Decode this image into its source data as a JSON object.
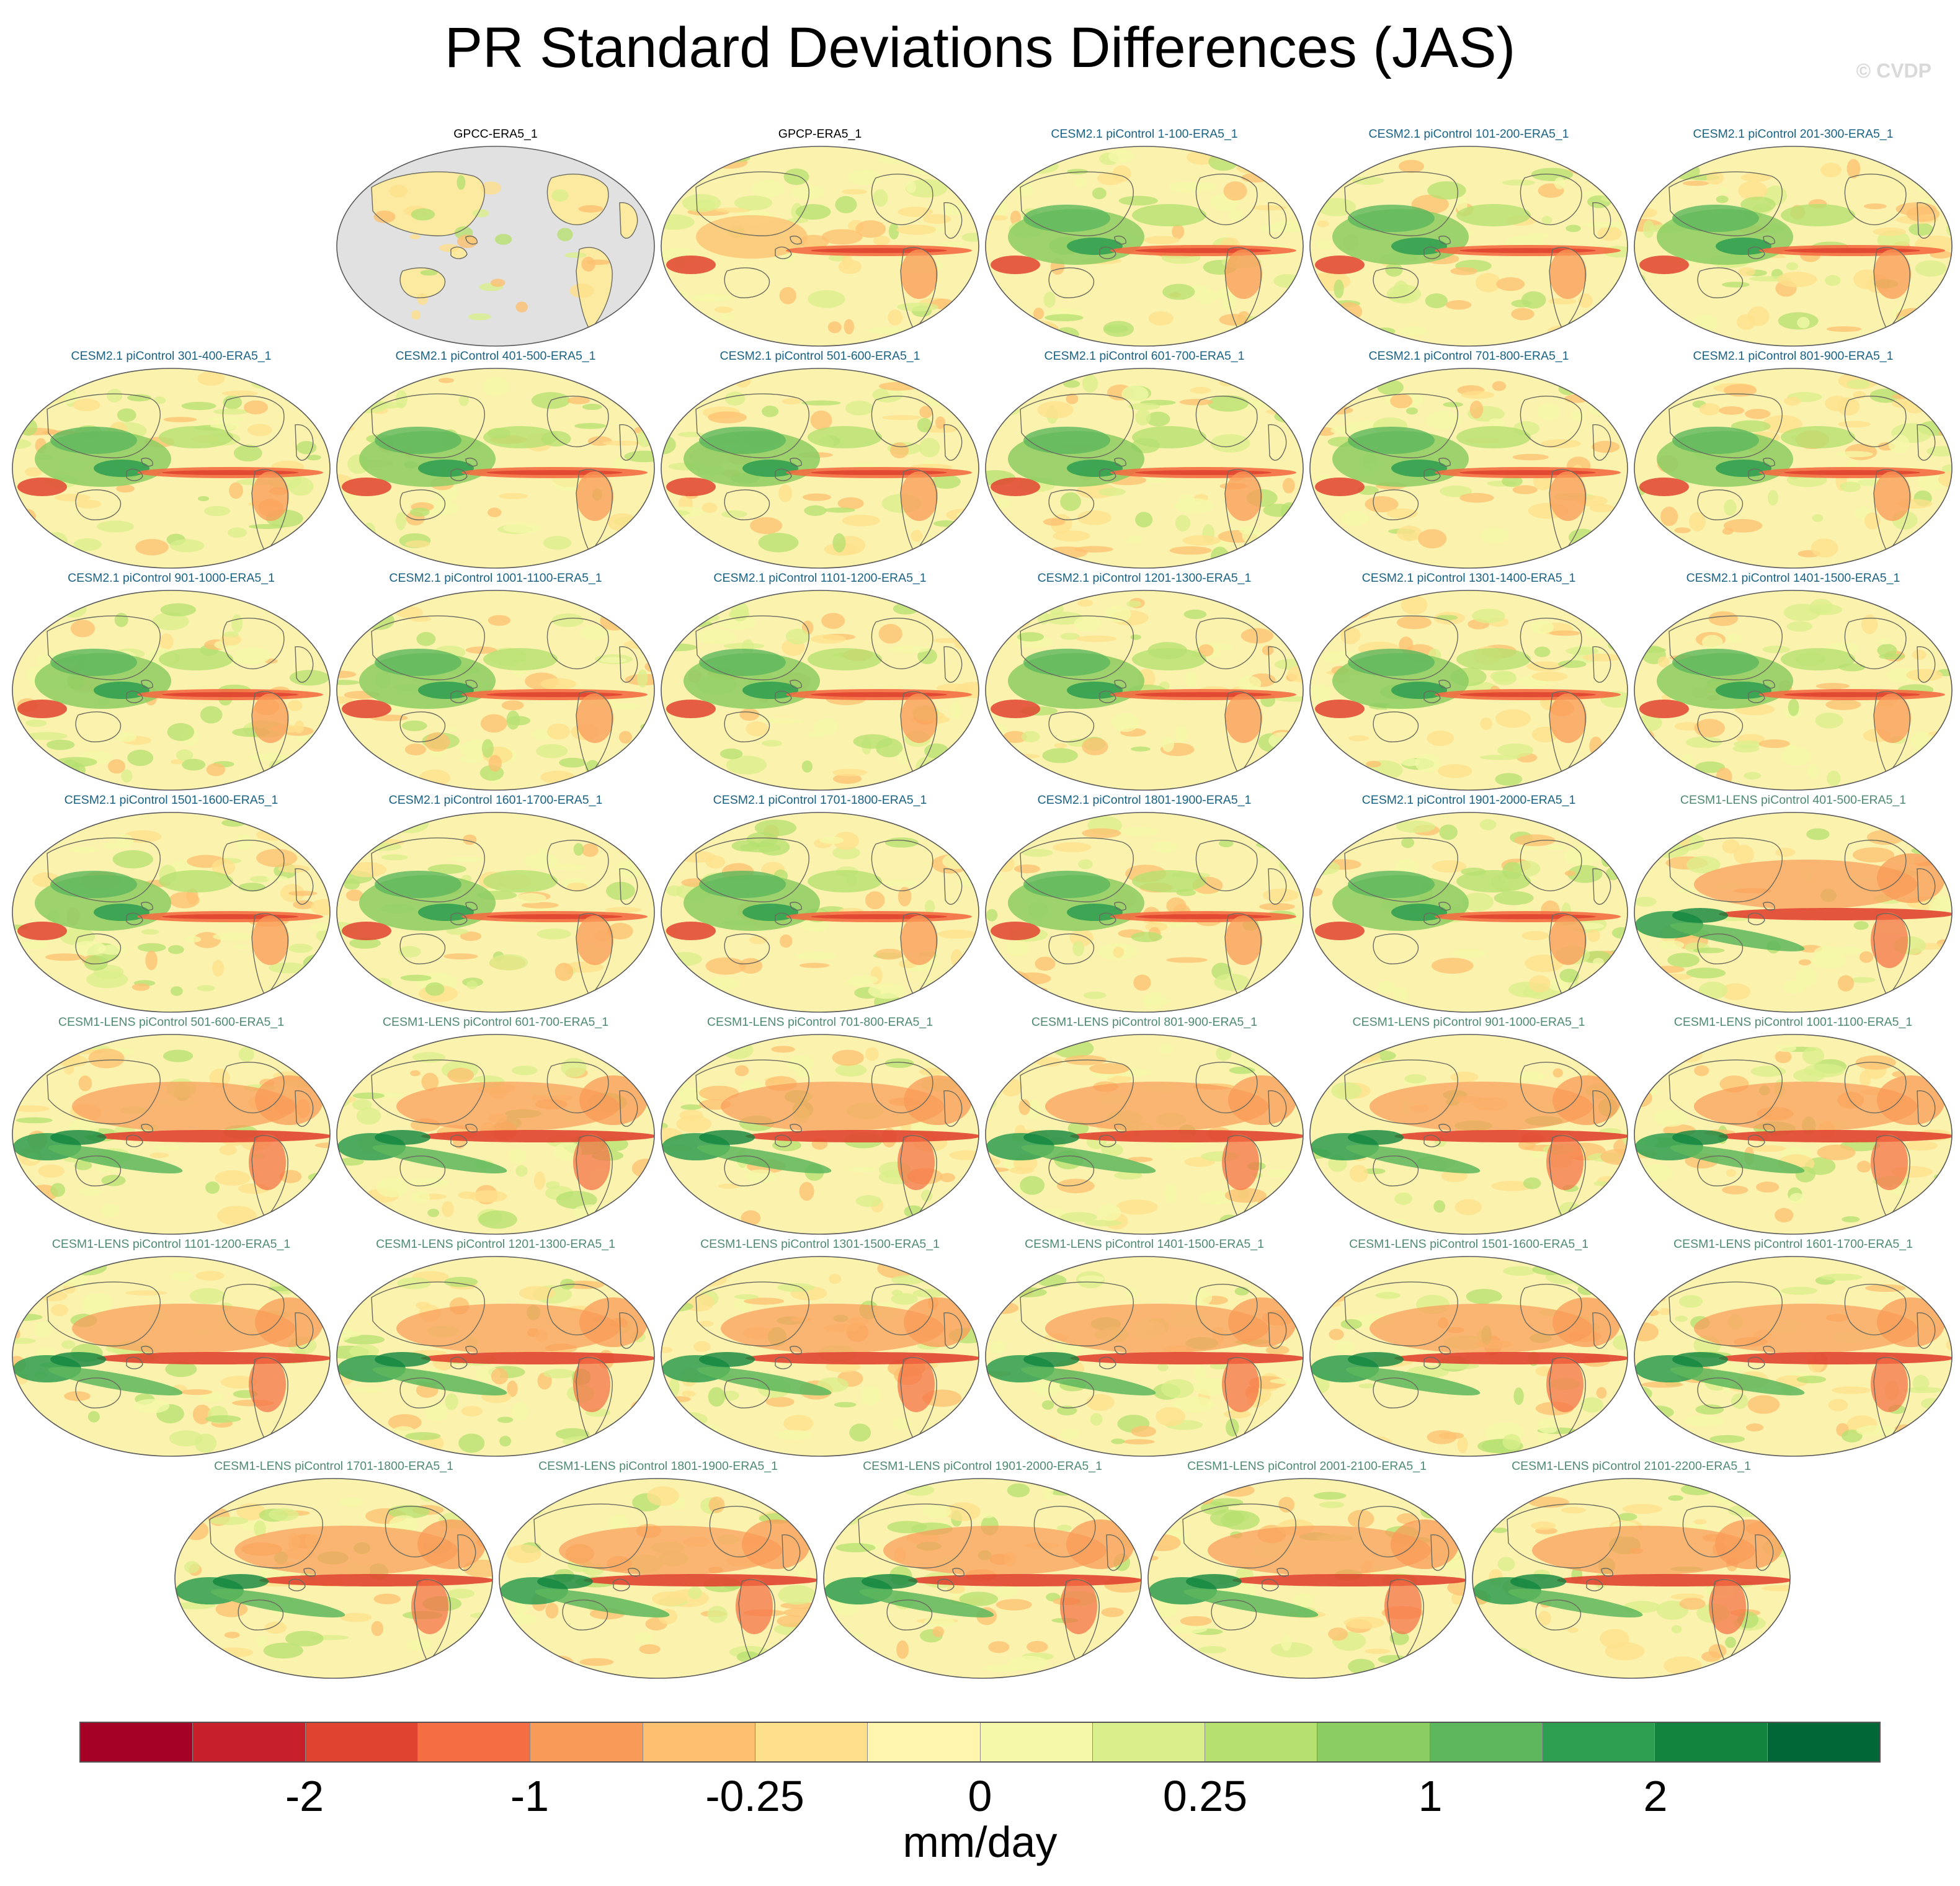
{
  "title": "PR Standard Deviations Differences (JAS)",
  "copyright": "© CVDP",
  "units": "mm/day",
  "colorbar": {
    "colors": [
      "#a50026",
      "#c8202a",
      "#e04430",
      "#f46d43",
      "#f99b58",
      "#fdc070",
      "#fee08b",
      "#fff5ad",
      "#f4f8a8",
      "#d9ef8b",
      "#b6e070",
      "#8ccd62",
      "#5db75c",
      "#2e9e50",
      "#12843e",
      "#006837"
    ],
    "tick_labels": [
      {
        "label": "-2",
        "boundary": 2
      },
      {
        "label": "-1",
        "boundary": 4
      },
      {
        "label": "-0.25",
        "boundary": 6
      },
      {
        "label": "0",
        "boundary": 8
      },
      {
        "label": "0.25",
        "boundary": 10
      },
      {
        "label": "1",
        "boundary": 12
      },
      {
        "label": "2",
        "boundary": 14
      }
    ]
  },
  "panel_style": {
    "obs": "#000000",
    "cesm2": "#1a6284",
    "lens": "#4f8a73"
  },
  "panels": [
    {
      "title": "GPCC-ERA5_1",
      "group": "obs",
      "pattern": "gpcc"
    },
    {
      "title": "GPCP-ERA5_1",
      "group": "obs",
      "pattern": "gpcp"
    },
    {
      "title": "CESM2.1 piControl 1-100-ERA5_1",
      "group": "cesm2",
      "pattern": "cesm2"
    },
    {
      "title": "CESM2.1 piControl 101-200-ERA5_1",
      "group": "cesm2",
      "pattern": "cesm2"
    },
    {
      "title": "CESM2.1 piControl 201-300-ERA5_1",
      "group": "cesm2",
      "pattern": "cesm2"
    },
    {
      "title": "CESM2.1 piControl 301-400-ERA5_1",
      "group": "cesm2",
      "pattern": "cesm2"
    },
    {
      "title": "CESM2.1 piControl 401-500-ERA5_1",
      "group": "cesm2",
      "pattern": "cesm2"
    },
    {
      "title": "CESM2.1 piControl 501-600-ERA5_1",
      "group": "cesm2",
      "pattern": "cesm2"
    },
    {
      "title": "CESM2.1 piControl 601-700-ERA5_1",
      "group": "cesm2",
      "pattern": "cesm2"
    },
    {
      "title": "CESM2.1 piControl 701-800-ERA5_1",
      "group": "cesm2",
      "pattern": "cesm2"
    },
    {
      "title": "CESM2.1 piControl 801-900-ERA5_1",
      "group": "cesm2",
      "pattern": "cesm2"
    },
    {
      "title": "CESM2.1 piControl 901-1000-ERA5_1",
      "group": "cesm2",
      "pattern": "cesm2"
    },
    {
      "title": "CESM2.1 piControl 1001-1100-ERA5_1",
      "group": "cesm2",
      "pattern": "cesm2"
    },
    {
      "title": "CESM2.1 piControl 1101-1200-ERA5_1",
      "group": "cesm2",
      "pattern": "cesm2"
    },
    {
      "title": "CESM2.1 piControl 1201-1300-ERA5_1",
      "group": "cesm2",
      "pattern": "cesm2"
    },
    {
      "title": "CESM2.1 piControl 1301-1400-ERA5_1",
      "group": "cesm2",
      "pattern": "cesm2"
    },
    {
      "title": "CESM2.1 piControl 1401-1500-ERA5_1",
      "group": "cesm2",
      "pattern": "cesm2"
    },
    {
      "title": "CESM2.1 piControl 1501-1600-ERA5_1",
      "group": "cesm2",
      "pattern": "cesm2"
    },
    {
      "title": "CESM2.1 piControl 1601-1700-ERA5_1",
      "group": "cesm2",
      "pattern": "cesm2"
    },
    {
      "title": "CESM2.1 piControl 1701-1800-ERA5_1",
      "group": "cesm2",
      "pattern": "cesm2"
    },
    {
      "title": "CESM2.1 piControl 1801-1900-ERA5_1",
      "group": "cesm2",
      "pattern": "cesm2"
    },
    {
      "title": "CESM2.1 piControl 1901-2000-ERA5_1",
      "group": "cesm2",
      "pattern": "cesm2"
    },
    {
      "title": "CESM1-LENS piControl 401-500-ERA5_1",
      "group": "lens",
      "pattern": "lens"
    },
    {
      "title": "CESM1-LENS piControl 501-600-ERA5_1",
      "group": "lens",
      "pattern": "lens"
    },
    {
      "title": "CESM1-LENS piControl 601-700-ERA5_1",
      "group": "lens",
      "pattern": "lens"
    },
    {
      "title": "CESM1-LENS piControl 701-800-ERA5_1",
      "group": "lens",
      "pattern": "lens"
    },
    {
      "title": "CESM1-LENS piControl 801-900-ERA5_1",
      "group": "lens",
      "pattern": "lens"
    },
    {
      "title": "CESM1-LENS piControl 901-1000-ERA5_1",
      "group": "lens",
      "pattern": "lens"
    },
    {
      "title": "CESM1-LENS piControl 1001-1100-ERA5_1",
      "group": "lens",
      "pattern": "lens"
    },
    {
      "title": "CESM1-LENS piControl 1101-1200-ERA5_1",
      "group": "lens",
      "pattern": "lens"
    },
    {
      "title": "CESM1-LENS piControl 1201-1300-ERA5_1",
      "group": "lens",
      "pattern": "lens"
    },
    {
      "title": "CESM1-LENS piControl 1301-1500-ERA5_1",
      "group": "lens",
      "pattern": "lens"
    },
    {
      "title": "CESM1-LENS piControl 1401-1500-ERA5_1",
      "group": "lens",
      "pattern": "lens"
    },
    {
      "title": "CESM1-LENS piControl 1501-1600-ERA5_1",
      "group": "lens",
      "pattern": "lens"
    },
    {
      "title": "CESM1-LENS piControl 1601-1700-ERA5_1",
      "group": "lens",
      "pattern": "lens"
    },
    {
      "title": "CESM1-LENS piControl 1701-1800-ERA5_1",
      "group": "lens",
      "pattern": "lens"
    },
    {
      "title": "CESM1-LENS piControl 1801-1900-ERA5_1",
      "group": "lens",
      "pattern": "lens"
    },
    {
      "title": "CESM1-LENS piControl 1901-2000-ERA5_1",
      "group": "lens",
      "pattern": "lens"
    },
    {
      "title": "CESM1-LENS piControl 2001-2100-ERA5_1",
      "group": "lens",
      "pattern": "lens"
    },
    {
      "title": "CESM1-LENS piControl 2101-2200-ERA5_1",
      "group": "lens",
      "pattern": "lens"
    }
  ]
}
